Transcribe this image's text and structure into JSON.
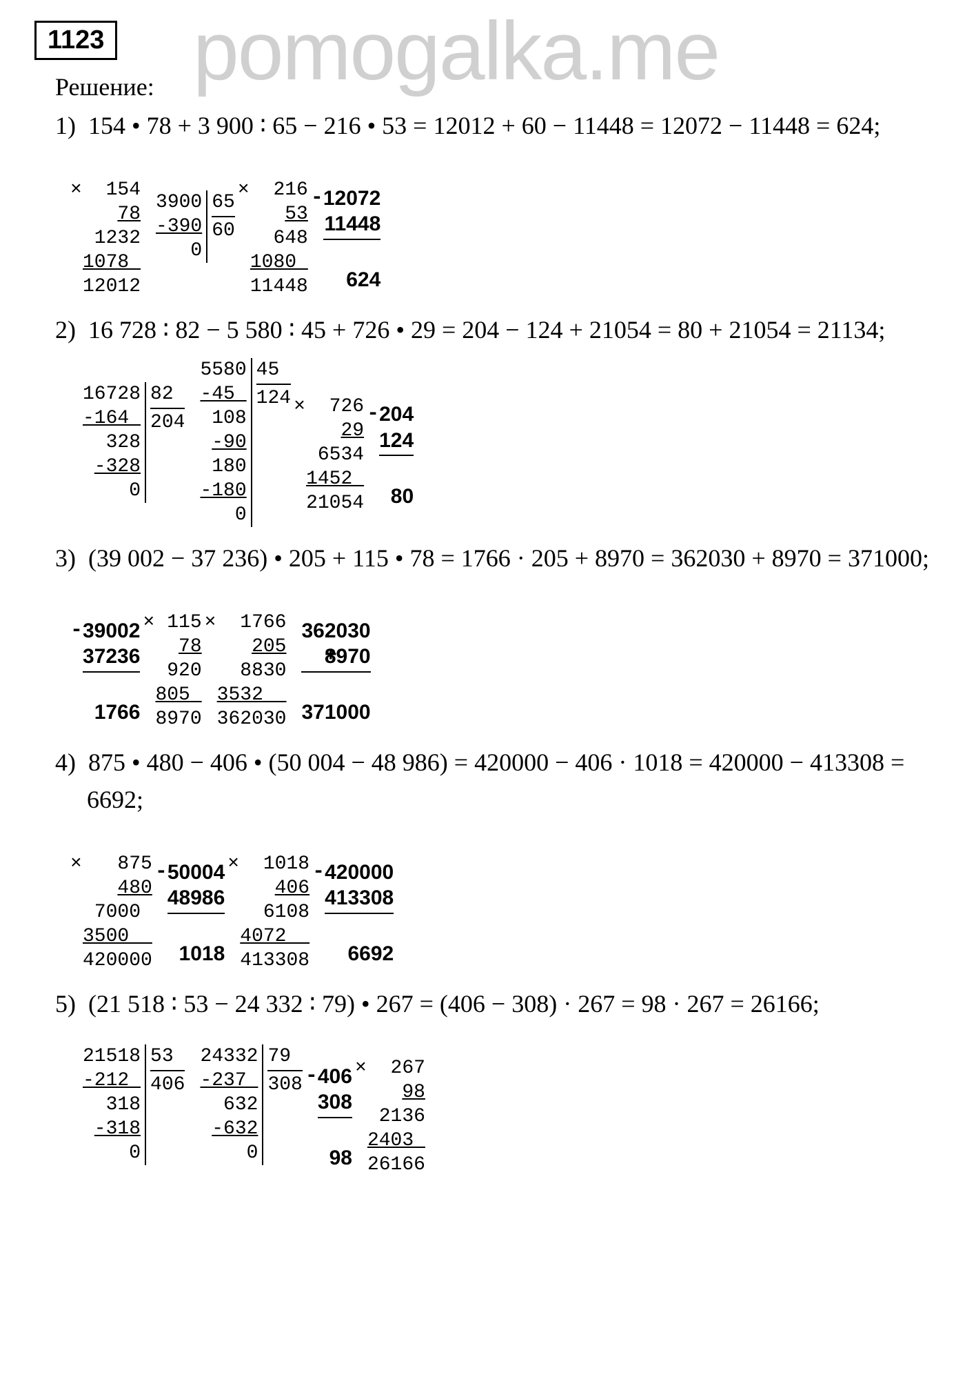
{
  "watermark": "pomogalka.me",
  "problem_number": "1123",
  "solution_label": "Решение:",
  "items": [
    {
      "n": "1)",
      "expression": "154 • 78 + 3 900 ∶ 65 − 216 • 53 = 12012 + 60 − 11448 = 12072 − 11448 = 624;"
    },
    {
      "n": "2)",
      "expression": "16 728 ∶ 82 − 5 580 ∶ 45 + 726 • 29 = 204 − 124 + 21054 = 80 + 21054 = 21134;"
    },
    {
      "n": "3)",
      "expression": "(39 002 − 37 236) • 205 + 115 • 78 = 1766 · 205 + 8970 = 362030 + 8970 = 371000;"
    },
    {
      "n": "4)",
      "expression": "875 • 480 − 406 • (50 004 − 48 986) = 420000 − 406 · 1018 = 420000 − 413308 = 6692;"
    },
    {
      "n": "5)",
      "expression": "(21 518 ∶ 53 − 24 332 ∶ 79) • 267 = (406 − 308) · 267 = 98 · 267 = 26166;"
    }
  ],
  "w1": {
    "mult1": {
      "op": "×",
      "a": "154",
      "b": "78",
      "p1": "1232",
      "p2": "1078 ",
      "r": "12012"
    },
    "div1": {
      "dividend": "3900",
      "divisor": "65",
      "s1": "-390",
      "s2": "0",
      "q": "60"
    },
    "mult2": {
      "op": "×",
      "a": "216",
      "b": "53",
      "p1": "648",
      "p2": "1080 ",
      "r": "11448"
    },
    "sub": {
      "op": "-",
      "a": "12072",
      "b": "11448",
      "r": "624"
    }
  },
  "w2": {
    "div1": {
      "dividend": "16728",
      "divisor": "82",
      "q": "204",
      "s1": "-164 ",
      "s2": "328",
      "s3": "-328",
      "s4": "0"
    },
    "div2": {
      "dividend": "5580",
      "divisor": "45",
      "q": "124",
      "s1": "-45 ",
      "s2": "108",
      "s3": "-90",
      "s4": "180",
      "s5": "-180",
      "s6": "0"
    },
    "mult": {
      "op": "×",
      "a": "726",
      "b": "29",
      "p1": "6534",
      "p2": "1452 ",
      "r": "21054"
    },
    "sub": {
      "op": "-",
      "a": "204",
      "b": "124",
      "r": "80"
    }
  },
  "w3": {
    "sub": {
      "op": "-",
      "a": "39002",
      "b": "37236",
      "r": "1766"
    },
    "mult1": {
      "op": "×",
      "a": "115",
      "b": "78",
      "p1": "920",
      "p2": "805 ",
      "r": "8970"
    },
    "mult2": {
      "op": "×",
      "a": "1766",
      "b": "205",
      "p1": "8830",
      "p2": "3532  ",
      "r": "362030"
    },
    "add": {
      "op": "+",
      "a": "362030",
      "b": "8970",
      "r": "371000"
    }
  },
  "w4": {
    "mult1": {
      "op": "×",
      "a": "875",
      "b": "480",
      "p1": "7000 ",
      "p2": "3500  ",
      "r": "420000"
    },
    "sub1": {
      "op": "-",
      "a": "50004",
      "b": "48986",
      "r": "1018"
    },
    "mult2": {
      "op": "×",
      "a": "1018",
      "b": "406",
      "p1": "6108",
      "p2": "4072  ",
      "r": "413308"
    },
    "sub2": {
      "op": "-",
      "a": "420000",
      "b": "413308",
      "r": "6692"
    }
  },
  "w5": {
    "div1": {
      "dividend": "21518",
      "divisor": "53",
      "q": "406",
      "s1": "-212 ",
      "s2": "318",
      "s3": "-318",
      "s4": "0"
    },
    "div2": {
      "dividend": "24332",
      "divisor": "79",
      "q": "308",
      "s1": "-237 ",
      "s2": "632",
      "s3": "-632",
      "s4": "0"
    },
    "sub": {
      "op": "-",
      "a": "406",
      "b": "308",
      "r": "98"
    },
    "mult": {
      "op": "×",
      "a": "267",
      "b": "98",
      "p1": "2136",
      "p2": "2403 ",
      "r": "26166"
    }
  }
}
